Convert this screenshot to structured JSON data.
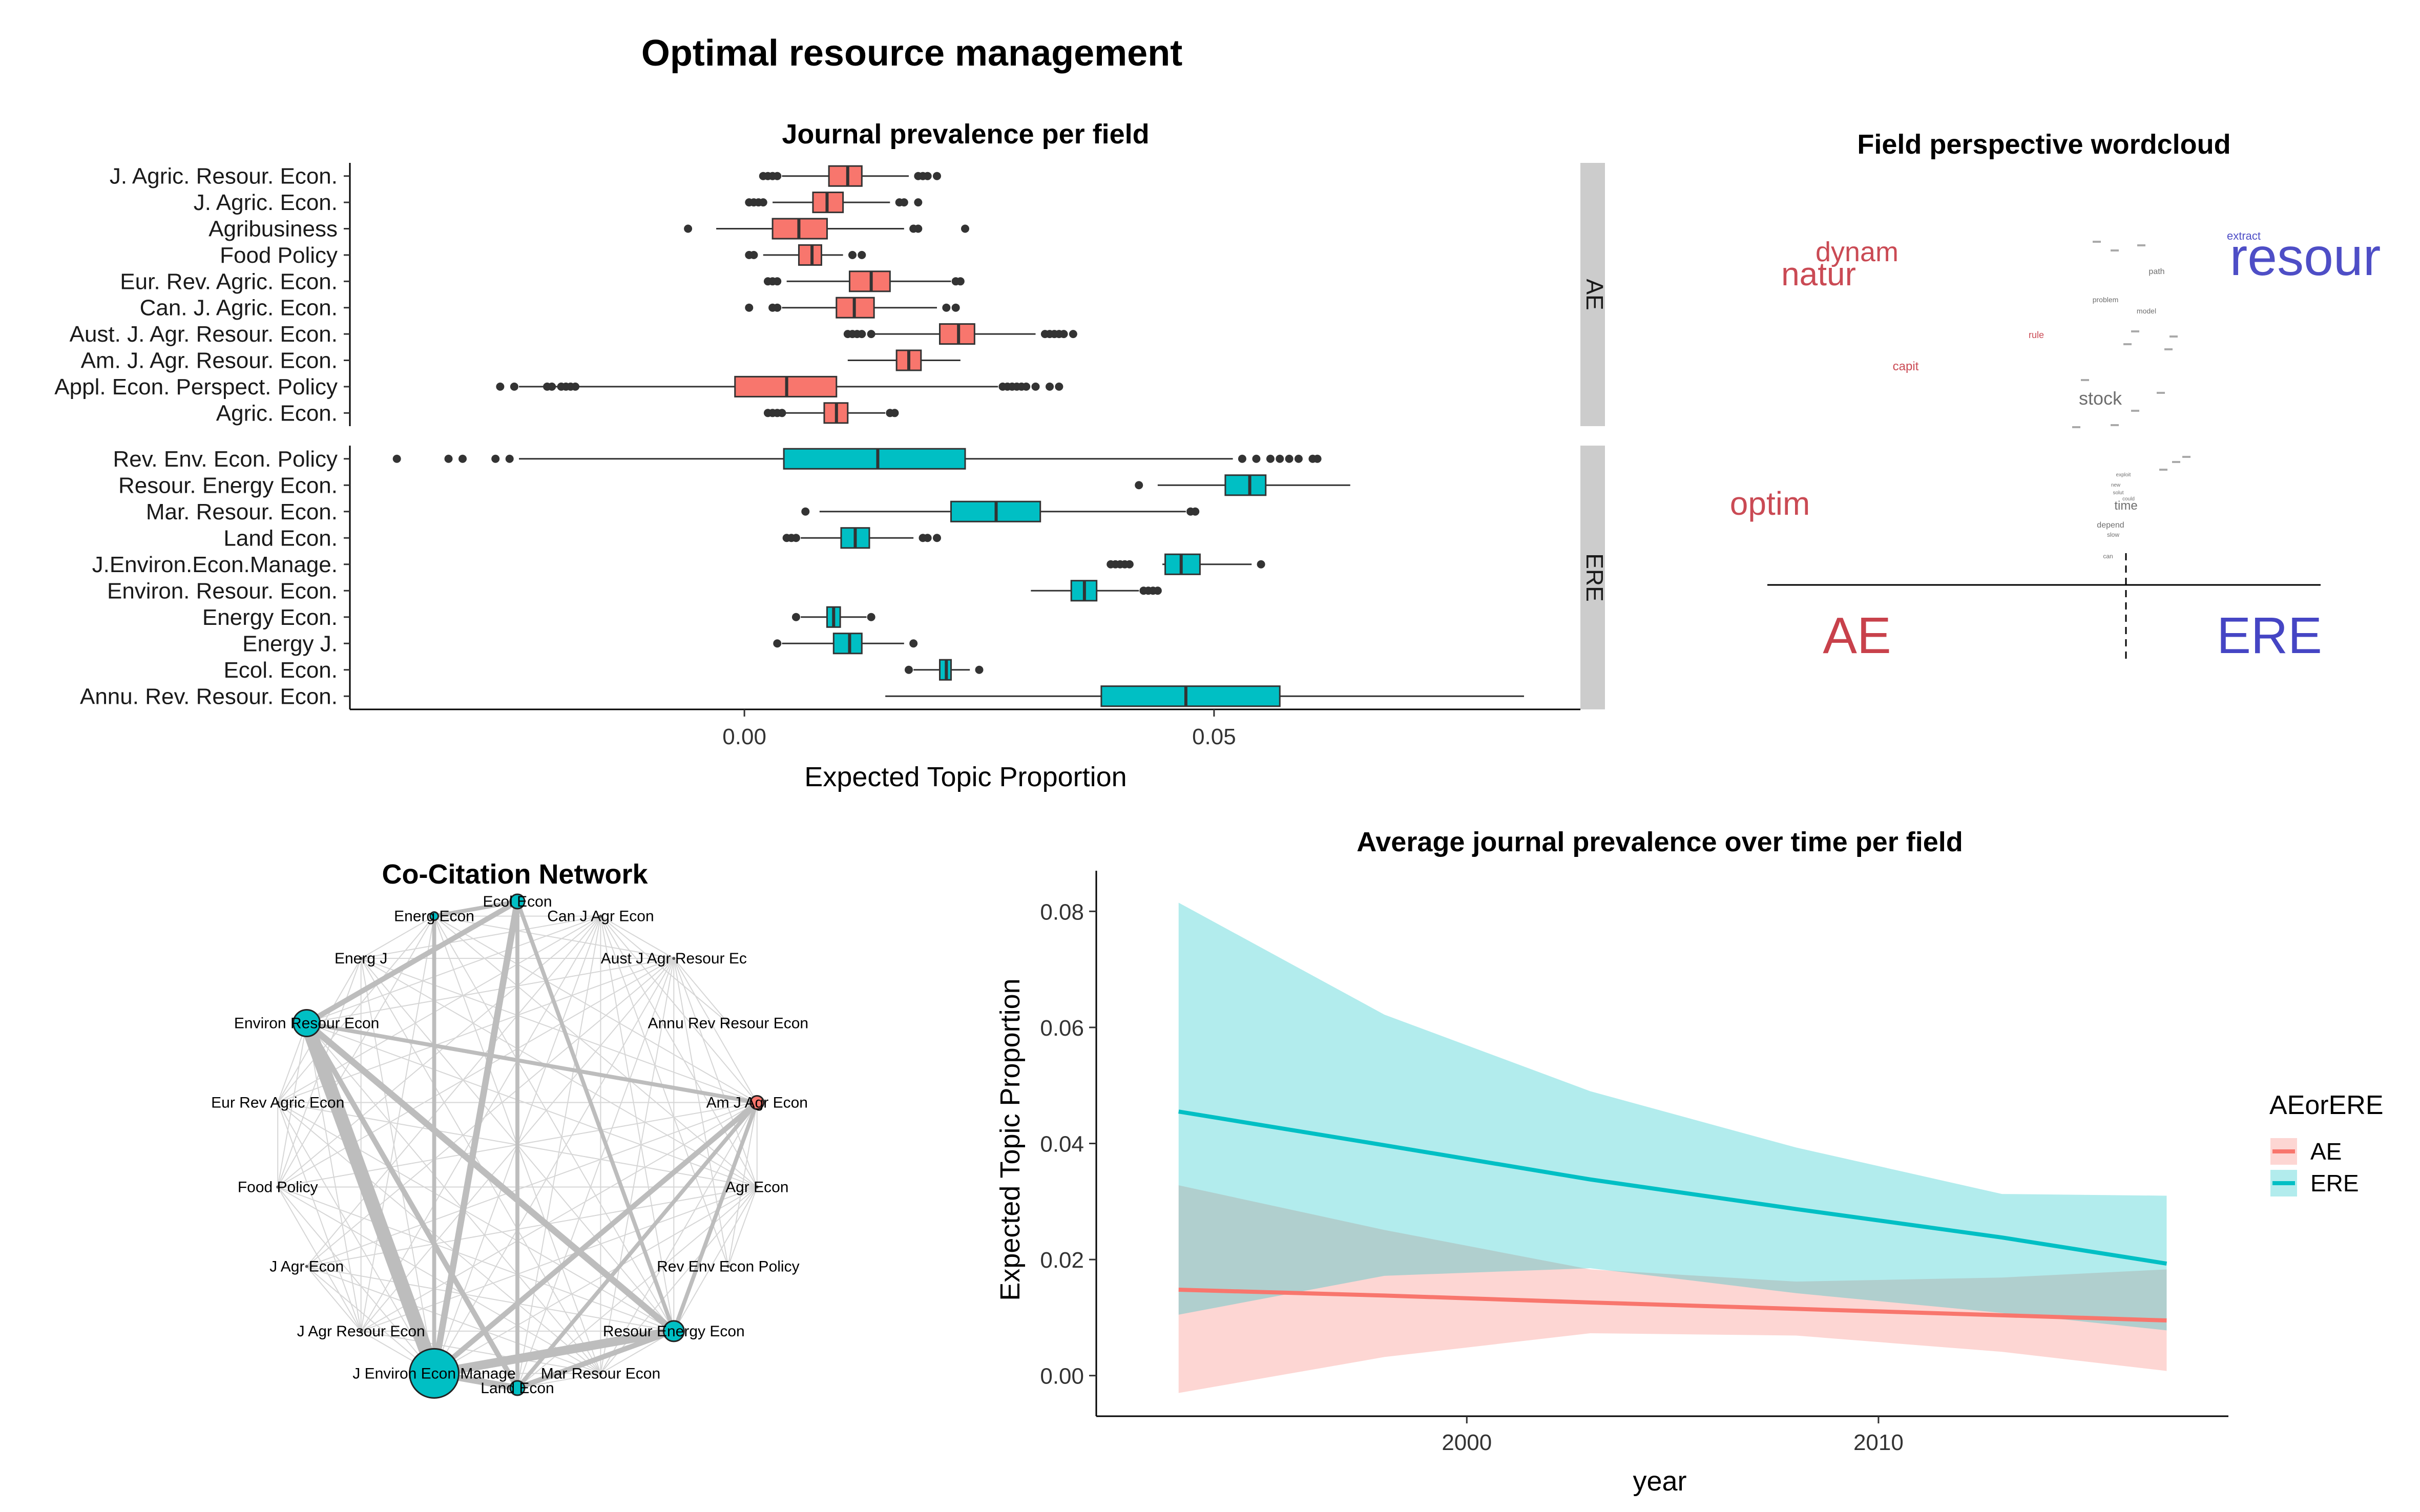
{
  "main_title": "Optimal resource management",
  "colors": {
    "AE": "#F8766D",
    "ERE": "#00BFC4",
    "wc_AE": "#C8414B",
    "wc_ERE": "#4545C4",
    "strip": "#CCCCCC"
  },
  "chart_data": [
    {
      "type": "boxplot",
      "title": "Journal prevalence per field",
      "xlabel": "Expected Topic Proportion",
      "ylabel": "",
      "xlim": [
        -0.042,
        0.089
      ],
      "x_ticks": [
        "0.00",
        "0.05"
      ],
      "x_tick_values": [
        0.0,
        0.05
      ],
      "grid": false,
      "panels": [
        {
          "strip": "AE",
          "group": "AE",
          "rows": [
            {
              "label": "J. Agric. Resour. Econ.",
              "stats": [
                0.004,
                0.009,
                0.011,
                0.0125,
                0.0175
              ],
              "outliers": [
                0.002,
                0.0025,
                0.003,
                0.0035,
                0.0185,
                0.019,
                0.0195,
                0.0205
              ]
            },
            {
              "label": "J. Agric. Econ.",
              "stats": [
                0.003,
                0.0073,
                0.0088,
                0.0105,
                0.0155
              ],
              "outliers": [
                0.0005,
                0.001,
                0.0015,
                0.002,
                0.0165,
                0.017,
                0.0185
              ]
            },
            {
              "label": "Agribusiness",
              "stats": [
                -0.003,
                0.003,
                0.0058,
                0.0088,
                0.017
              ],
              "outliers": [
                -0.006,
                0.018,
                0.0185,
                0.0235
              ]
            },
            {
              "label": "Food Policy",
              "stats": [
                0.002,
                0.0058,
                0.0072,
                0.0082,
                0.0105
              ],
              "outliers": [
                0.0005,
                0.001,
                0.0115,
                0.0125
              ]
            },
            {
              "label": "Eur. Rev. Agric. Econ.",
              "stats": [
                0.0045,
                0.0112,
                0.0135,
                0.0155,
                0.022
              ],
              "outliers": [
                0.0025,
                0.003,
                0.0035,
                0.0225,
                0.023
              ]
            },
            {
              "label": "Can. J. Agric. Econ.",
              "stats": [
                0.004,
                0.0098,
                0.0117,
                0.0138,
                0.0205
              ],
              "outliers": [
                0.0005,
                0.003,
                0.0035,
                0.0215,
                0.0225
              ]
            },
            {
              "label": "Aust. J. Agr. Resour. Econ.",
              "stats": [
                0.0135,
                0.0208,
                0.0228,
                0.0245,
                0.031
              ],
              "outliers": [
                0.011,
                0.0115,
                0.012,
                0.0125,
                0.0135,
                0.032,
                0.0325,
                0.033,
                0.0335,
                0.034,
                0.035
              ]
            },
            {
              "label": "Am. J. Agr. Resour. Econ.",
              "stats": [
                0.011,
                0.0162,
                0.0175,
                0.0188,
                0.023
              ],
              "outliers": []
            },
            {
              "label": "Appl. Econ. Perspect. Policy",
              "stats": [
                -0.024,
                -0.001,
                0.0045,
                0.0098,
                0.027
              ],
              "outliers": [
                -0.026,
                -0.0245,
                -0.021,
                -0.0205,
                -0.0195,
                -0.019,
                -0.0185,
                -0.018,
                0.0275,
                0.028,
                0.0285,
                0.029,
                0.0295,
                0.03,
                0.031,
                0.0325,
                0.0335
              ]
            },
            {
              "label": "Agric. Econ.",
              "stats": [
                0.0035,
                0.0085,
                0.0098,
                0.011,
                0.015
              ],
              "outliers": [
                0.0025,
                0.003,
                0.0035,
                0.004,
                0.0155,
                0.016
              ]
            }
          ]
        },
        {
          "strip": "ERE",
          "group": "ERE",
          "rows": [
            {
              "label": "Rev. Env. Econ. Policy",
              "stats": [
                -0.024,
                0.0042,
                0.0142,
                0.0235,
                0.052
              ],
              "outliers": [
                -0.037,
                -0.0315,
                -0.03,
                -0.0265,
                -0.025,
                0.053,
                0.0545,
                0.056,
                0.057,
                0.058,
                0.059,
                0.0605,
                0.061
              ]
            },
            {
              "label": "Resour. Energy Econ.",
              "stats": [
                0.044,
                0.0512,
                0.0538,
                0.0555,
                0.0645
              ],
              "outliers": [
                0.042
              ]
            },
            {
              "label": "Mar. Resour. Econ.",
              "stats": [
                0.008,
                0.022,
                0.0268,
                0.0315,
                0.047
              ],
              "outliers": [
                0.0065,
                0.0475,
                0.048
              ]
            },
            {
              "label": "Land Econ.",
              "stats": [
                0.006,
                0.0103,
                0.0118,
                0.0133,
                0.018
              ],
              "outliers": [
                0.0045,
                0.005,
                0.0055,
                0.019,
                0.0195,
                0.0205
              ]
            },
            {
              "label": "J.Environ.Econ.Manage.",
              "stats": [
                0.0445,
                0.0448,
                0.0465,
                0.0485,
                0.054
              ],
              "outliers": [
                0.039,
                0.0395,
                0.04,
                0.0405,
                0.041,
                0.055
              ]
            },
            {
              "label": "Environ. Resour. Econ.",
              "stats": [
                0.0305,
                0.0348,
                0.0362,
                0.0375,
                0.042
              ],
              "outliers": [
                0.0425,
                0.043,
                0.0435,
                0.044
              ]
            },
            {
              "label": "Energy Econ.",
              "stats": [
                0.006,
                0.0088,
                0.0095,
                0.0102,
                0.013
              ],
              "outliers": [
                0.0055,
                0.0135
              ]
            },
            {
              "label": "Energy J.",
              "stats": [
                0.004,
                0.0095,
                0.0112,
                0.0125,
                0.017
              ],
              "outliers": [
                0.0035,
                0.018
              ]
            },
            {
              "label": "Ecol. Econ.",
              "stats": [
                0.018,
                0.0208,
                0.0215,
                0.022,
                0.024
              ],
              "outliers": [
                0.0175,
                0.025
              ]
            },
            {
              "label": "Annu. Rev. Resour. Econ.",
              "stats": [
                0.015,
                0.038,
                0.047,
                0.057,
                0.083
              ],
              "outliers": []
            }
          ]
        }
      ]
    },
    {
      "type": "wordcloud",
      "title": "Field perspective wordcloud",
      "axis_labels": [
        "AE",
        "ERE"
      ],
      "words": [
        {
          "text": "dynam",
          "group": "AE",
          "size": 54
        },
        {
          "text": "natur",
          "group": "AE",
          "size": 64
        },
        {
          "text": "optim",
          "group": "AE",
          "size": 64
        },
        {
          "text": "capit",
          "group": "AE",
          "size": 24
        },
        {
          "text": "rule",
          "group": "AE",
          "size": 18
        },
        {
          "text": "resour",
          "group": "ERE",
          "size": 104
        },
        {
          "text": "extract",
          "group": "ERE",
          "size": 22
        },
        {
          "text": "stock",
          "group": "neutral",
          "size": 36
        },
        {
          "text": "time",
          "group": "neutral",
          "size": 24
        },
        {
          "text": "path",
          "group": "neutral",
          "size": 16
        },
        {
          "text": "problem",
          "group": "neutral",
          "size": 14
        },
        {
          "text": "model",
          "group": "neutral",
          "size": 14
        },
        {
          "text": "depend",
          "group": "neutral",
          "size": 16
        },
        {
          "text": "slow",
          "group": "neutral",
          "size": 12
        },
        {
          "text": "can",
          "group": "neutral",
          "size": 12
        },
        {
          "text": "exploit",
          "group": "neutral",
          "size": 10
        },
        {
          "text": "new",
          "group": "neutral",
          "size": 10
        },
        {
          "text": "solut",
          "group": "neutral",
          "size": 10
        },
        {
          "text": "could",
          "group": "neutral",
          "size": 10
        }
      ]
    },
    {
      "type": "network",
      "title": "Co-Citation Network",
      "nodes": [
        {
          "label": "Ecol Econ",
          "group": "ERE",
          "size": 14
        },
        {
          "label": "Can J Agr Econ",
          "group": "AE",
          "size": 0
        },
        {
          "label": "Aust J Agr Resour Ec",
          "group": "AE",
          "size": 0
        },
        {
          "label": "Annu Rev Resour Econ",
          "group": "ERE",
          "size": 0
        },
        {
          "label": "Am J Agr Econ",
          "group": "AE",
          "size": 13
        },
        {
          "label": "Agr Econ",
          "group": "AE",
          "size": 0
        },
        {
          "label": "Rev Env Econ Policy",
          "group": "ERE",
          "size": 0
        },
        {
          "label": "Resour Energy Econ",
          "group": "ERE",
          "size": 20
        },
        {
          "label": "Mar Resour Econ",
          "group": "ERE",
          "size": 0
        },
        {
          "label": "Land Econ",
          "group": "ERE",
          "size": 14
        },
        {
          "label": "J Environ Econ Manage",
          "group": "ERE",
          "size": 48
        },
        {
          "label": "J Agr Resour Econ",
          "group": "AE",
          "size": 0
        },
        {
          "label": "J Agr Econ",
          "group": "AE",
          "size": 0
        },
        {
          "label": "Food Policy",
          "group": "AE",
          "size": 0
        },
        {
          "label": "Eur Rev Agric Econ",
          "group": "AE",
          "size": 0
        },
        {
          "label": "Environ Resour Econ",
          "group": "ERE",
          "size": 26
        },
        {
          "label": "Energ J",
          "group": "ERE",
          "size": 0
        },
        {
          "label": "Energ Econ",
          "group": "ERE",
          "size": 8
        }
      ],
      "edges": [
        {
          "from": "Environ Resour Econ",
          "to": "J Environ Econ Manage",
          "weight": 10
        },
        {
          "from": "Resour Energy Econ",
          "to": "J Environ Econ Manage",
          "weight": 6
        },
        {
          "from": "Environ Resour Econ",
          "to": "Resour Energy Econ",
          "weight": 4
        },
        {
          "from": "Ecol Econ",
          "to": "J Environ Econ Manage",
          "weight": 4
        },
        {
          "from": "Ecol Econ",
          "to": "Environ Resour Econ",
          "weight": 3
        },
        {
          "from": "Am J Agr Econ",
          "to": "J Environ Econ Manage",
          "weight": 3
        },
        {
          "from": "Land Econ",
          "to": "J Environ Econ Manage",
          "weight": 4
        },
        {
          "from": "Land Econ",
          "to": "Resour Energy Econ",
          "weight": 3
        },
        {
          "from": "Environ Resour Econ",
          "to": "Am J Agr Econ",
          "weight": 2
        },
        {
          "from": "Ecol Econ",
          "to": "Resour Energy Econ",
          "weight": 2
        },
        {
          "from": "Ecol Econ",
          "to": "Land Econ",
          "weight": 2
        },
        {
          "from": "Energ Econ",
          "to": "J Environ Econ Manage",
          "weight": 2
        },
        {
          "from": "Environ Resour Econ",
          "to": "Land Econ",
          "weight": 3
        },
        {
          "from": "Ecol Econ",
          "to": "Energ Econ",
          "weight": 2
        },
        {
          "from": "Am J Agr Econ",
          "to": "Land Econ",
          "weight": 2
        },
        {
          "from": "Am J Agr Econ",
          "to": "Resour Energy Econ",
          "weight": 2
        }
      ]
    },
    {
      "type": "line",
      "title": "Average journal prevalence over time per field",
      "xlabel": "year",
      "ylabel": "Expected Topic Proportion",
      "xlim": [
        1991,
        2018.5
      ],
      "ylim": [
        -0.007,
        0.087
      ],
      "x_ticks": [
        2000,
        2010
      ],
      "y_ticks": [
        "0.00",
        "0.02",
        "0.04",
        "0.06",
        "0.08"
      ],
      "y_tick_values": [
        0.0,
        0.02,
        0.04,
        0.06,
        0.08
      ],
      "legend_title": "AEorERE",
      "legend_position": "right",
      "series": [
        {
          "name": "AE",
          "color": "#F8766D",
          "x": [
            1993,
            1998,
            2003,
            2008,
            2013,
            2017
          ],
          "y": [
            0.0148,
            0.0138,
            0.0126,
            0.0115,
            0.0104,
            0.0095
          ],
          "lower": [
            -0.003,
            0.0032,
            0.0073,
            0.0069,
            0.0041,
            0.0008
          ],
          "upper": [
            0.0328,
            0.0251,
            0.0183,
            0.0162,
            0.0169,
            0.0183
          ]
        },
        {
          "name": "ERE",
          "color": "#00BFC4",
          "x": [
            1993,
            1998,
            2003,
            2008,
            2013,
            2017
          ],
          "y": [
            0.0455,
            0.0397,
            0.0338,
            0.0287,
            0.0238,
            0.0193
          ],
          "lower": [
            0.0105,
            0.0172,
            0.0185,
            0.0142,
            0.0108,
            0.0078
          ],
          "upper": [
            0.0815,
            0.0622,
            0.049,
            0.0393,
            0.0313,
            0.031
          ]
        }
      ]
    }
  ]
}
